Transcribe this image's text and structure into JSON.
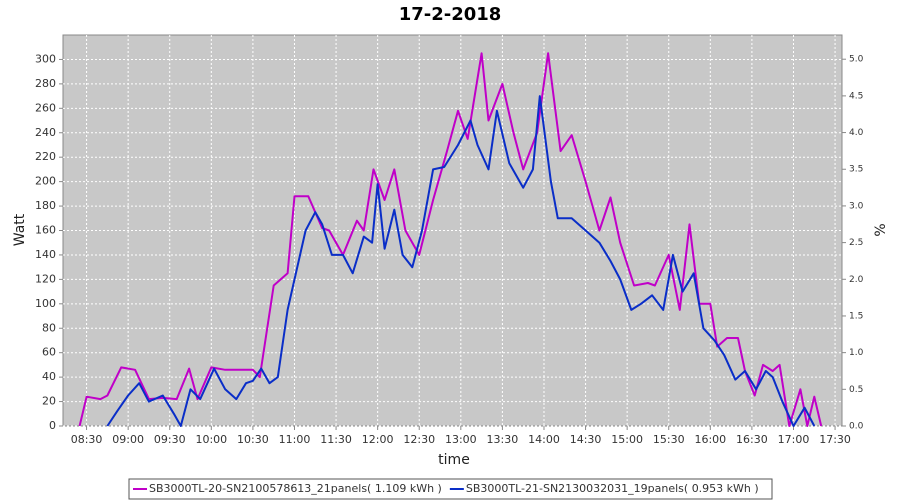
{
  "chart_data": {
    "type": "line",
    "title": "17-2-2018",
    "x_label": "time",
    "y_label": "Watt",
    "y2_label": "%",
    "xlim": [
      "08:13",
      "17:35"
    ],
    "xticks": [
      "08:30",
      "09:00",
      "09:30",
      "10:00",
      "10:30",
      "11:00",
      "11:30",
      "12:00",
      "12:30",
      "13:00",
      "13:30",
      "14:00",
      "14:30",
      "15:00",
      "15:30",
      "16:00",
      "16:30",
      "17:00",
      "17:30"
    ],
    "ylim": [
      0,
      320
    ],
    "yticks": [
      0,
      20,
      40,
      60,
      80,
      100,
      120,
      140,
      160,
      180,
      200,
      220,
      240,
      260,
      280,
      300
    ],
    "y2lim": [
      0,
      5.33
    ],
    "y2ticks": [
      {
        "value": 0,
        "label": "0.0"
      },
      0.5,
      {
        "value": 1,
        "label": "1.0"
      },
      1.5,
      {
        "value": 2,
        "label": "2.0"
      },
      2.5,
      {
        "value": 3,
        "label": "3.0"
      },
      3.5,
      {
        "value": 4,
        "label": "4.0"
      },
      4.5,
      {
        "value": 5,
        "label": "5.0"
      }
    ],
    "grid": true,
    "series": [
      {
        "name": "SB3000TL-20-SN2100578613_21panels( 1.109 kWh )",
        "color": "#c000c8",
        "x": [
          "08:25",
          "08:30",
          "08:40",
          "08:45",
          "08:55",
          "09:05",
          "09:15",
          "09:25",
          "09:35",
          "09:44",
          "09:50",
          "10:00",
          "10:10",
          "10:20",
          "10:30",
          "10:35",
          "10:45",
          "10:55",
          "11:00",
          "11:10",
          "11:20",
          "11:25",
          "11:35",
          "11:45",
          "11:50",
          "11:57",
          "12:05",
          "12:12",
          "12:20",
          "12:30",
          "12:40",
          "12:50",
          "12:58",
          "13:05",
          "13:15",
          "13:20",
          "13:30",
          "13:38",
          "13:45",
          "13:55",
          "14:03",
          "14:12",
          "14:20",
          "14:30",
          "14:40",
          "14:48",
          "14:55",
          "15:05",
          "15:15",
          "15:20",
          "15:30",
          "15:38",
          "15:45",
          "15:52",
          "16:00",
          "16:05",
          "16:12",
          "16:20",
          "16:25",
          "16:32",
          "16:38",
          "16:45",
          "16:50",
          "16:57",
          "17:05",
          "17:10",
          "17:15",
          "17:20"
        ],
        "values": [
          0,
          24,
          22,
          25,
          48,
          46,
          22,
          23,
          22,
          47,
          22,
          48,
          46,
          46,
          46,
          40,
          115,
          125,
          188,
          188,
          162,
          160,
          140,
          168,
          160,
          210,
          185,
          210,
          160,
          140,
          185,
          225,
          258,
          235,
          305,
          250,
          280,
          240,
          210,
          240,
          305,
          225,
          238,
          200,
          160,
          187,
          150,
          115,
          117,
          115,
          140,
          95,
          165,
          100,
          100,
          65,
          72,
          72,
          45,
          25,
          50,
          45,
          50,
          0,
          30,
          0,
          24,
          0
        ]
      },
      {
        "name": "SB3000TL-21-SN2130032031_19panels( 0.953 kWh )",
        "color": "#0a2ec8",
        "x": [
          "08:45",
          "08:52",
          "09:00",
          "09:08",
          "09:15",
          "09:25",
          "09:33",
          "09:38",
          "09:45",
          "09:52",
          "10:02",
          "10:10",
          "10:18",
          "10:25",
          "10:30",
          "10:36",
          "10:42",
          "10:48",
          "10:55",
          "11:00",
          "11:08",
          "11:15",
          "11:20",
          "11:27",
          "11:35",
          "11:42",
          "11:50",
          "11:56",
          "12:00",
          "12:05",
          "12:12",
          "12:18",
          "12:25",
          "12:32",
          "12:40",
          "12:48",
          "12:58",
          "13:07",
          "13:12",
          "13:20",
          "13:26",
          "13:35",
          "13:45",
          "13:52",
          "13:57",
          "14:05",
          "14:10",
          "14:20",
          "14:30",
          "14:40",
          "14:48",
          "14:55",
          "15:03",
          "15:10",
          "15:18",
          "15:26",
          "15:33",
          "15:40",
          "15:48",
          "15:55",
          "16:03",
          "16:10",
          "16:18",
          "16:25",
          "16:33",
          "16:40",
          "16:45",
          "16:52",
          "17:00",
          "17:08",
          "17:15"
        ],
        "values": [
          0,
          12,
          25,
          35,
          20,
          25,
          10,
          0,
          30,
          22,
          47,
          30,
          22,
          35,
          37,
          47,
          35,
          40,
          95,
          120,
          160,
          175,
          165,
          140,
          140,
          125,
          155,
          150,
          198,
          145,
          177,
          140,
          130,
          160,
          210,
          212,
          230,
          250,
          230,
          210,
          258,
          215,
          195,
          210,
          270,
          200,
          170,
          170,
          160,
          150,
          135,
          120,
          95,
          100,
          107,
          95,
          140,
          110,
          125,
          80,
          70,
          58,
          38,
          45,
          30,
          45,
          40,
          20,
          0,
          15,
          0
        ]
      }
    ]
  }
}
